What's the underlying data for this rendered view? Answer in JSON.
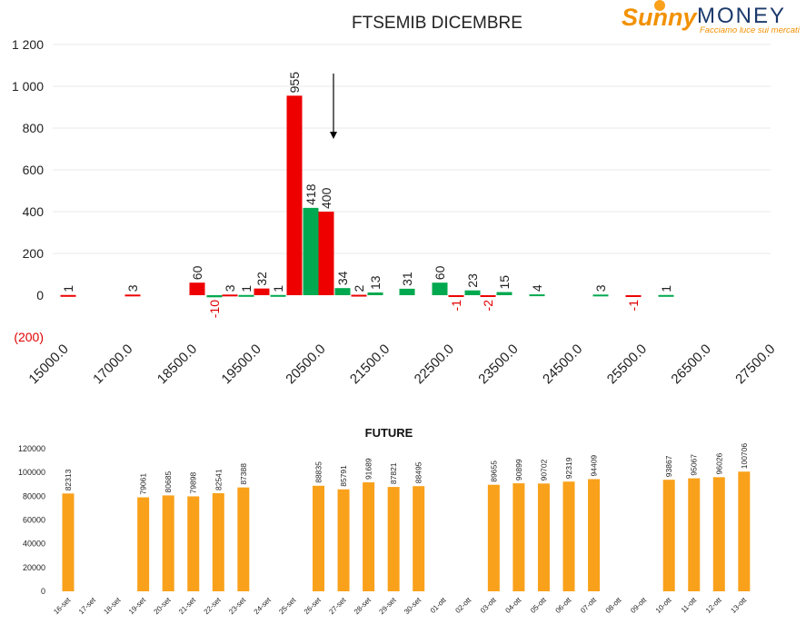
{
  "logo": {
    "word1": "Sunny",
    "word2": "MONEY",
    "tagline": "Facciamo luce sui mercati"
  },
  "colors": {
    "red": "#ee0000",
    "green": "#00a94f",
    "orange": "#f9a11b",
    "negative_label": "#e00000",
    "grid": "#e8e8e8",
    "text": "#222222"
  },
  "chart_data": [
    {
      "type": "bar",
      "title": "FTSEMIB DICEMBRE",
      "xlabel": "",
      "ylabel": "",
      "ylim": [
        -200,
        1200
      ],
      "y_ticks": [
        {
          "value": 1200,
          "label": "1 200"
        },
        {
          "value": 1000,
          "label": "1 000"
        },
        {
          "value": 800,
          "label": "800"
        },
        {
          "value": 600,
          "label": "600"
        },
        {
          "value": 400,
          "label": "400"
        },
        {
          "value": 200,
          "label": "200"
        },
        {
          "value": 0,
          "label": "0"
        },
        {
          "value": -200,
          "label": "(200)"
        }
      ],
      "x_ticks": [
        "15000.0",
        "17000.0",
        "18500.0",
        "19500.0",
        "20500.0",
        "21500.0",
        "22500.0",
        "23500.0",
        "24500.0",
        "25500.0",
        "26500.0",
        "27500.0"
      ],
      "grid": true,
      "annotation": "arrow",
      "bars": [
        {
          "value": 1,
          "label": "1",
          "color": "red"
        },
        {
          "value": 3,
          "label": "3",
          "color": "red"
        },
        {
          "value": 60,
          "label": "60",
          "color": "red"
        },
        {
          "value": -10,
          "label": "-10",
          "color": "green"
        },
        {
          "value": 3,
          "label": "3",
          "color": "red"
        },
        {
          "value": 1,
          "label": "1",
          "color": "green"
        },
        {
          "value": 32,
          "label": "32",
          "color": "red"
        },
        {
          "value": 1,
          "label": "1",
          "color": "green"
        },
        {
          "value": 955,
          "label": "955",
          "color": "red"
        },
        {
          "value": 418,
          "label": "418",
          "color": "green"
        },
        {
          "value": 400,
          "label": "400",
          "color": "red"
        },
        {
          "value": 34,
          "label": "34",
          "color": "green"
        },
        {
          "value": 2,
          "label": "2",
          "color": "red"
        },
        {
          "value": 13,
          "label": "13",
          "color": "green"
        },
        {
          "value": 31,
          "label": "31",
          "color": "green"
        },
        {
          "value": 60,
          "label": "60",
          "color": "green"
        },
        {
          "value": -1,
          "label": "-1",
          "color": "red"
        },
        {
          "value": 23,
          "label": "23",
          "color": "green"
        },
        {
          "value": -2,
          "label": "-2",
          "color": "red"
        },
        {
          "value": 15,
          "label": "15",
          "color": "green"
        },
        {
          "value": 4,
          "label": "4",
          "color": "green"
        },
        {
          "value": 3,
          "label": "3",
          "color": "green"
        },
        {
          "value": -1,
          "label": "-1",
          "color": "red"
        },
        {
          "value": 1,
          "label": "1",
          "color": "green"
        }
      ]
    },
    {
      "type": "bar",
      "title": "FUTURE",
      "xlabel": "",
      "ylabel": "",
      "ylim": [
        0,
        120000
      ],
      "y_ticks": [
        "0",
        "20000",
        "40000",
        "60000",
        "80000",
        "100000",
        "120000"
      ],
      "grid": false,
      "categories": [
        "16-set",
        "17-set",
        "18-set",
        "19-set",
        "20-set",
        "21-set",
        "22-set",
        "23-set",
        "24-set",
        "25-set",
        "26-set",
        "27-set",
        "28-set",
        "29-set",
        "30-set",
        "01-ott",
        "02-ott",
        "03-ott",
        "04-ott",
        "05-ott",
        "06-ott",
        "07-ott",
        "08-ott",
        "09-ott",
        "10-ott",
        "11-ott",
        "12-ott",
        "13-ott"
      ],
      "values": [
        82313,
        null,
        null,
        79061,
        80685,
        79898,
        82541,
        87388,
        null,
        null,
        88835,
        85791,
        91689,
        87821,
        88495,
        null,
        null,
        89655,
        90899,
        90702,
        92319,
        94409,
        null,
        null,
        93867,
        95067,
        96026,
        100706
      ],
      "value_labels": [
        "82313",
        "",
        "",
        "79061",
        "80685",
        "79898",
        "82541",
        "87388",
        "",
        "",
        "88835",
        "85791",
        "91689",
        "87821",
        "88495",
        "",
        "",
        "89655",
        "90899",
        "90702",
        "92319",
        "94409",
        "",
        "",
        "93867",
        "95067",
        "96026",
        "100706"
      ]
    }
  ]
}
